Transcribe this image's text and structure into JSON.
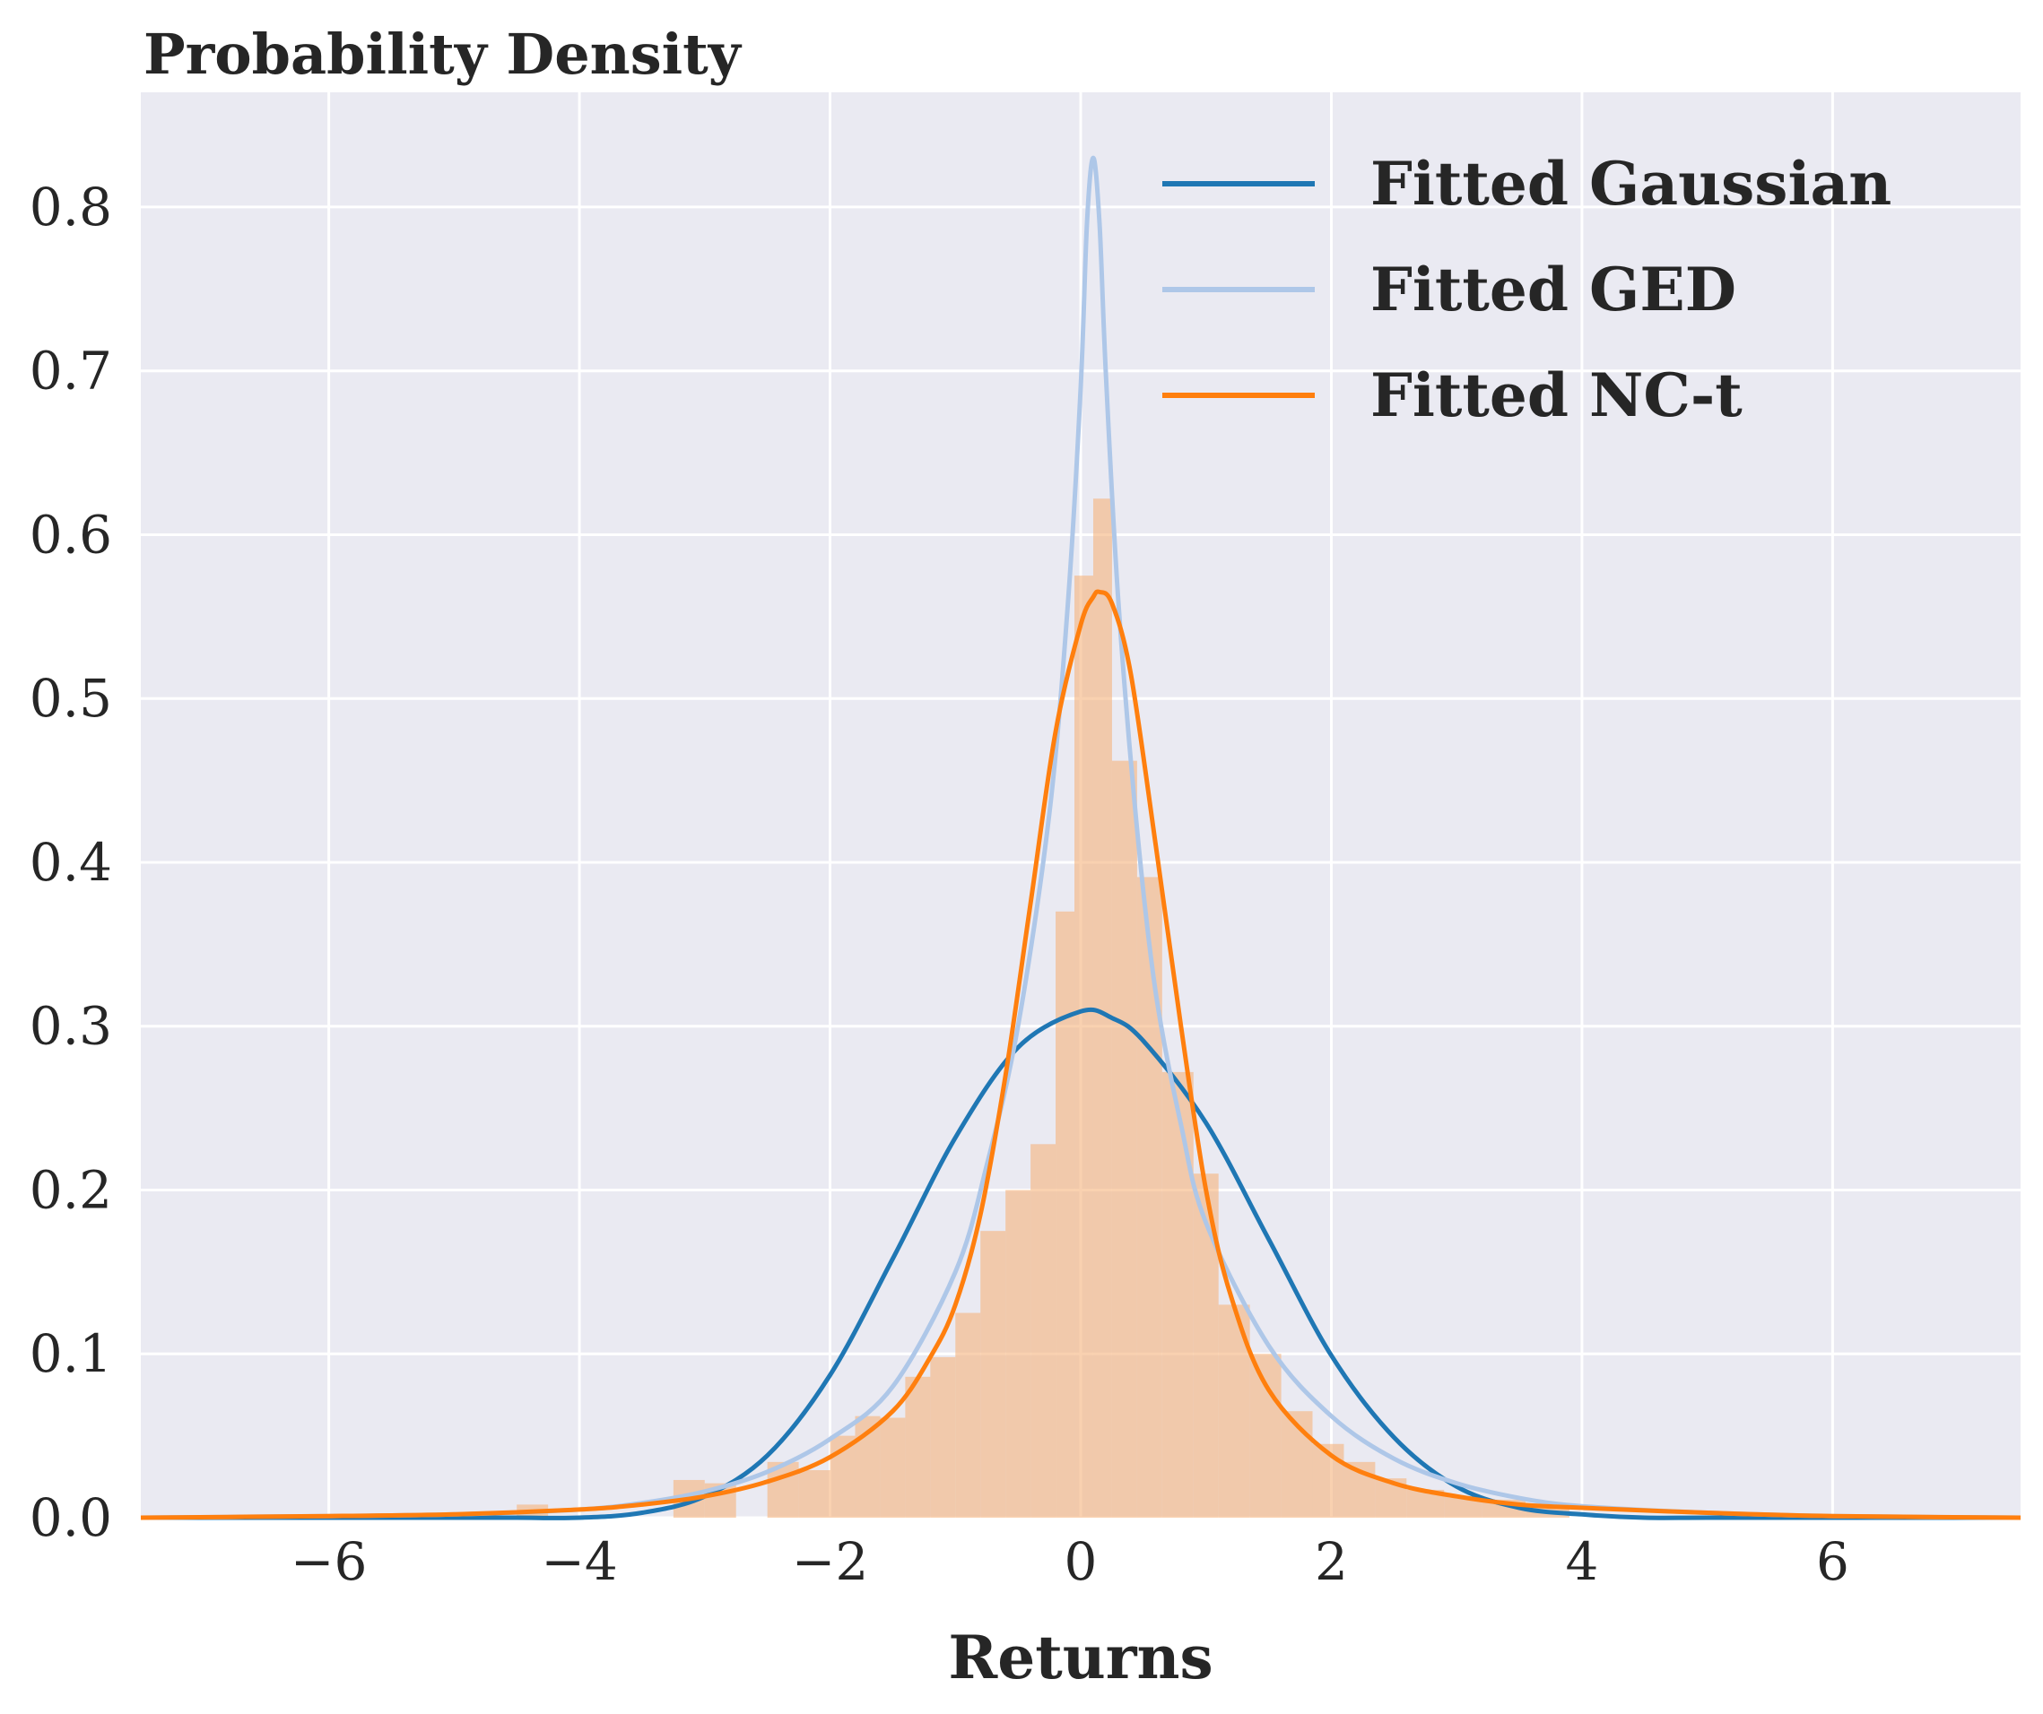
{
  "chart_data": {
    "type": "line",
    "title": "Probability Density",
    "xlabel": "Returns",
    "ylabel": "",
    "xlim": [
      -7.5,
      7.5
    ],
    "ylim": [
      0,
      0.87
    ],
    "xticks": [
      -6,
      -4,
      -2,
      0,
      2,
      4,
      6
    ],
    "xtick_labels": [
      "−6",
      "−4",
      "−2",
      "0",
      "2",
      "4",
      "6"
    ],
    "yticks": [
      0.0,
      0.1,
      0.2,
      0.3,
      0.4,
      0.5,
      0.6,
      0.7,
      0.8
    ],
    "ytick_labels": [
      "0.0",
      "0.1",
      "0.2",
      "0.3",
      "0.4",
      "0.5",
      "0.6",
      "0.7",
      "0.8"
    ],
    "grid": true,
    "legend_position": "top-right",
    "histogram": {
      "color": "#f5b37b",
      "bins": [
        [
          -4.5,
          -4.25,
          0.008
        ],
        [
          -3.25,
          -3.0,
          0.023
        ],
        [
          -3.0,
          -2.75,
          0.021
        ],
        [
          -2.5,
          -2.25,
          0.034
        ],
        [
          -2.25,
          -2.0,
          0.029
        ],
        [
          -2.0,
          -1.8,
          0.05
        ],
        [
          -1.8,
          -1.6,
          0.062
        ],
        [
          -1.6,
          -1.4,
          0.061
        ],
        [
          -1.4,
          -1.2,
          0.086
        ],
        [
          -1.2,
          -1.0,
          0.098
        ],
        [
          -1.0,
          -0.8,
          0.125
        ],
        [
          -0.8,
          -0.6,
          0.175
        ],
        [
          -0.6,
          -0.4,
          0.2
        ],
        [
          -0.4,
          -0.2,
          0.228
        ],
        [
          -0.2,
          -0.05,
          0.37
        ],
        [
          -0.05,
          0.1,
          0.575
        ],
        [
          0.1,
          0.25,
          0.622
        ],
        [
          0.25,
          0.45,
          0.462
        ],
        [
          0.45,
          0.65,
          0.391
        ],
        [
          0.65,
          0.9,
          0.272
        ],
        [
          0.9,
          1.1,
          0.21
        ],
        [
          1.1,
          1.35,
          0.13
        ],
        [
          1.35,
          1.6,
          0.1
        ],
        [
          1.6,
          1.85,
          0.065
        ],
        [
          1.85,
          2.1,
          0.045
        ],
        [
          2.1,
          2.35,
          0.034
        ],
        [
          2.35,
          2.6,
          0.024
        ],
        [
          2.6,
          2.9,
          0.017
        ],
        [
          2.9,
          3.2,
          0.013
        ],
        [
          3.2,
          3.55,
          0.011
        ],
        [
          3.55,
          3.9,
          0.007
        ]
      ]
    },
    "series": [
      {
        "name": "Fitted Gaussian",
        "color": "#1f77b4",
        "x": [
          -7.5,
          -6,
          -5,
          -4.5,
          -4,
          -3.5,
          -3,
          -2.5,
          -2,
          -1.5,
          -1,
          -0.5,
          0,
          0.25,
          0.5,
          1,
          1.5,
          2,
          2.5,
          3,
          3.5,
          4,
          4.5,
          5,
          6,
          7.5
        ],
        "y": [
          0.0,
          0.0,
          0.0,
          0.0,
          0.0,
          0.003,
          0.013,
          0.038,
          0.087,
          0.158,
          0.232,
          0.287,
          0.309,
          0.305,
          0.291,
          0.241,
          0.17,
          0.099,
          0.049,
          0.019,
          0.006,
          0.002,
          0.0,
          0.0,
          0.0,
          0.0
        ]
      },
      {
        "name": "Fitted GED",
        "color": "#aec7e8",
        "x": [
          -7.5,
          -6,
          -5,
          -4,
          -3.5,
          -3,
          -2.5,
          -2,
          -1.5,
          -1,
          -0.75,
          -0.5,
          -0.25,
          -0.1,
          0.0,
          0.05,
          0.1,
          0.15,
          0.2,
          0.3,
          0.45,
          0.6,
          0.8,
          1,
          1.5,
          2,
          2.5,
          3,
          3.5,
          4,
          5,
          6,
          7.5
        ],
        "y": [
          0.0,
          0.001,
          0.002,
          0.005,
          0.009,
          0.016,
          0.028,
          0.048,
          0.08,
          0.15,
          0.215,
          0.3,
          0.43,
          0.56,
          0.69,
          0.79,
          0.83,
          0.79,
          0.7,
          0.56,
          0.42,
          0.32,
          0.24,
          0.18,
          0.105,
          0.062,
          0.036,
          0.021,
          0.012,
          0.007,
          0.003,
          0.001,
          0.0
        ]
      },
      {
        "name": "Fitted NC-t",
        "color": "#ff7f0e",
        "x": [
          -7.5,
          -6,
          -5,
          -4,
          -3.5,
          -3,
          -2.5,
          -2,
          -1.5,
          -1.2,
          -1,
          -0.8,
          -0.6,
          -0.4,
          -0.2,
          0,
          0.1,
          0.15,
          0.25,
          0.4,
          0.6,
          0.8,
          1,
          1.2,
          1.5,
          2,
          2.5,
          3,
          3.5,
          4,
          5,
          6,
          7.5
        ],
        "y": [
          0.0,
          0.001,
          0.002,
          0.005,
          0.008,
          0.013,
          0.022,
          0.037,
          0.065,
          0.098,
          0.13,
          0.185,
          0.27,
          0.375,
          0.48,
          0.545,
          0.562,
          0.565,
          0.558,
          0.515,
          0.41,
          0.3,
          0.2,
          0.135,
          0.078,
          0.038,
          0.021,
          0.013,
          0.008,
          0.006,
          0.003,
          0.001,
          0.0
        ]
      }
    ]
  }
}
